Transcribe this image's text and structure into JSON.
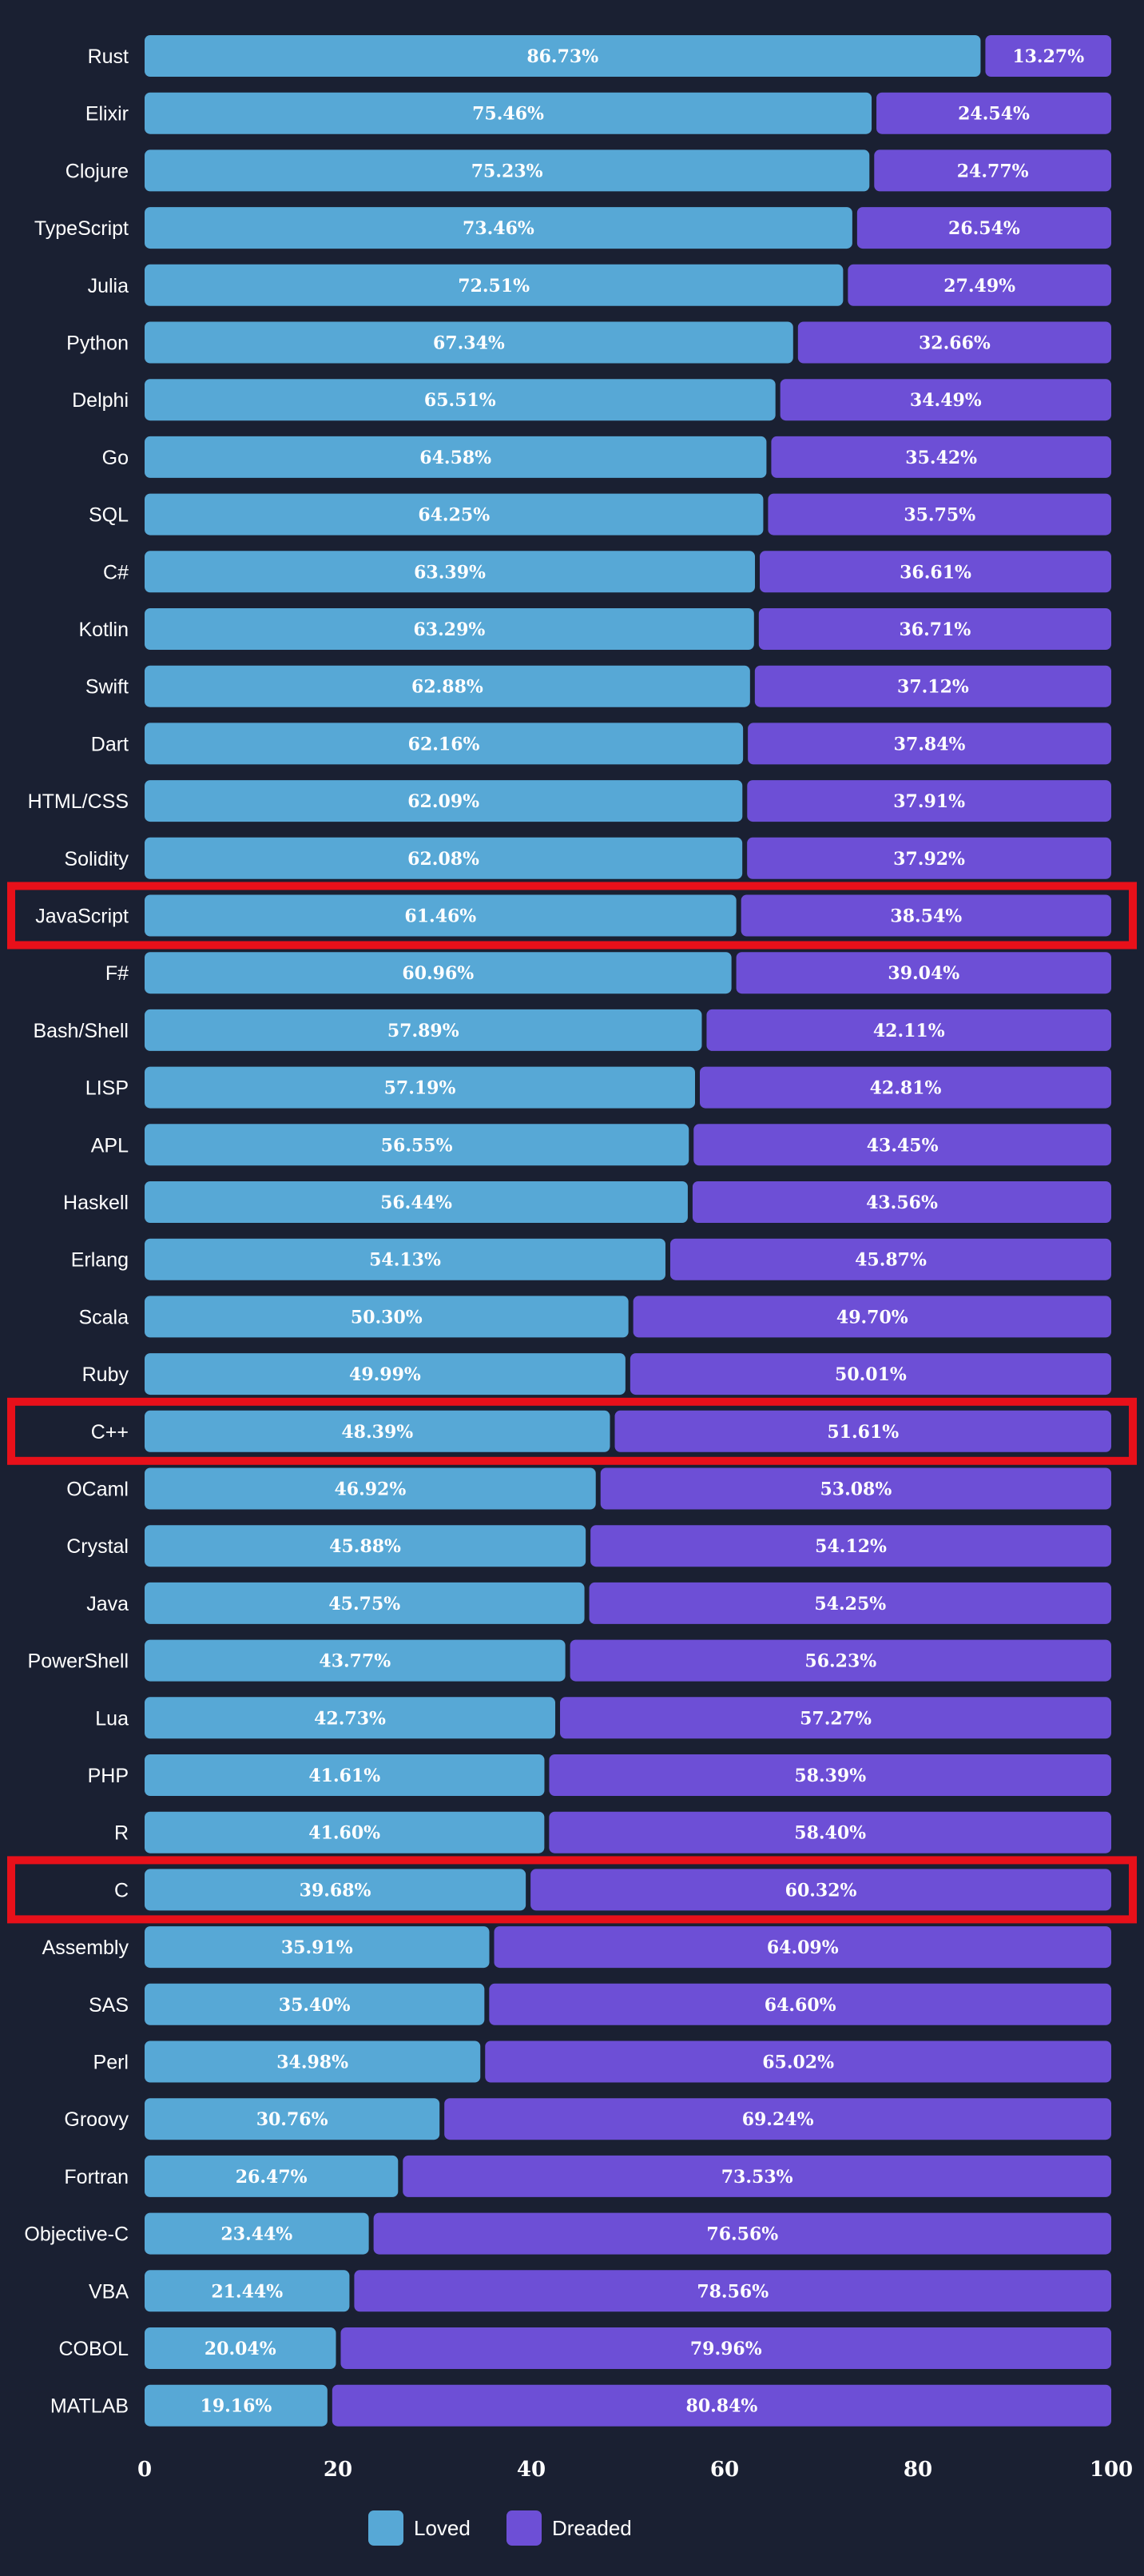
{
  "chart_data": {
    "type": "bar",
    "orientation": "horizontal",
    "stacked": true,
    "categories": [
      "Rust",
      "Elixir",
      "Clojure",
      "TypeScript",
      "Julia",
      "Python",
      "Delphi",
      "Go",
      "SQL",
      "C#",
      "Kotlin",
      "Swift",
      "Dart",
      "HTML/CSS",
      "Solidity",
      "JavaScript",
      "F#",
      "Bash/Shell",
      "LISP",
      "APL",
      "Haskell",
      "Erlang",
      "Scala",
      "Ruby",
      "C++",
      "OCaml",
      "Crystal",
      "Java",
      "PowerShell",
      "Lua",
      "PHP",
      "R",
      "C",
      "Assembly",
      "SAS",
      "Perl",
      "Groovy",
      "Fortran",
      "Objective-C",
      "VBA",
      "COBOL",
      "MATLAB"
    ],
    "series": [
      {
        "name": "Loved",
        "color": "#57a8d6",
        "values": [
          86.73,
          75.46,
          75.23,
          73.46,
          72.51,
          67.34,
          65.51,
          64.58,
          64.25,
          63.39,
          63.29,
          62.88,
          62.16,
          62.09,
          62.08,
          61.46,
          60.96,
          57.89,
          57.19,
          56.55,
          56.44,
          54.13,
          50.3,
          49.99,
          48.39,
          46.92,
          45.88,
          45.75,
          43.77,
          42.73,
          41.61,
          41.6,
          39.68,
          35.91,
          35.4,
          34.98,
          30.76,
          26.47,
          23.44,
          21.44,
          20.04,
          19.16
        ]
      },
      {
        "name": "Dreaded",
        "color": "#6d4fd6",
        "values": [
          13.27,
          24.54,
          24.77,
          26.54,
          27.49,
          32.66,
          34.49,
          35.42,
          35.75,
          36.61,
          36.71,
          37.12,
          37.84,
          37.91,
          37.92,
          38.54,
          39.04,
          42.11,
          42.81,
          43.45,
          43.56,
          45.87,
          49.7,
          50.01,
          51.61,
          53.08,
          54.12,
          54.25,
          56.23,
          57.27,
          58.39,
          58.4,
          60.32,
          64.09,
          64.6,
          65.02,
          69.24,
          73.53,
          76.56,
          78.56,
          79.96,
          80.84
        ]
      }
    ],
    "xlim": [
      0,
      100
    ],
    "xticks": [
      0,
      20,
      40,
      60,
      80,
      100
    ],
    "highlighted": [
      "JavaScript",
      "C++",
      "C"
    ],
    "highlight_color": "#e8101a",
    "legend": "bottom",
    "grid": false
  }
}
